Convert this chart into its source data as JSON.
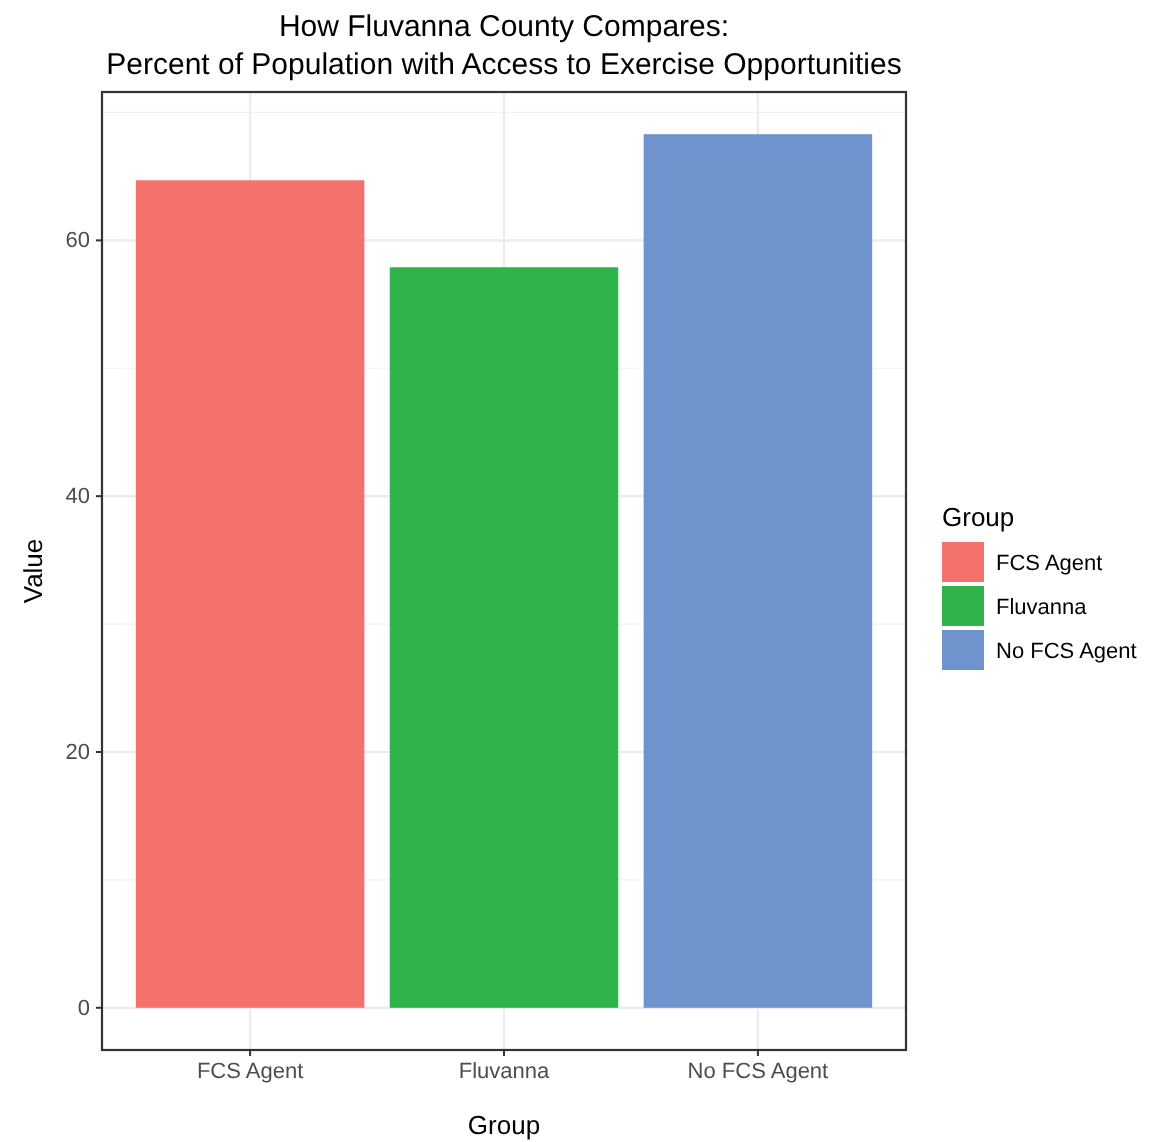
{
  "chart_data": {
    "type": "bar",
    "title": "How Fluvanna County Compares:\nPercent of Population with Access to Exercise Opportunities",
    "xlabel": "Group",
    "ylabel": "Value",
    "legend_title": "Group",
    "categories": [
      "FCS Agent",
      "Fluvanna",
      "No FCS Agent"
    ],
    "series": [
      {
        "name": "FCS Agent",
        "color": "#f3736c",
        "values": [
          64.7,
          null,
          null
        ]
      },
      {
        "name": "Fluvanna",
        "color": "#2fb34b",
        "values": [
          null,
          57.9,
          null
        ]
      },
      {
        "name": "No FCS Agent",
        "color": "#6f93cc",
        "values": [
          null,
          null,
          68.3
        ]
      }
    ],
    "stacked": true,
    "ylim": [
      -3.3,
      71.6
    ],
    "yticks": [
      0,
      20,
      40,
      60
    ],
    "grid": true,
    "legend": "right"
  }
}
